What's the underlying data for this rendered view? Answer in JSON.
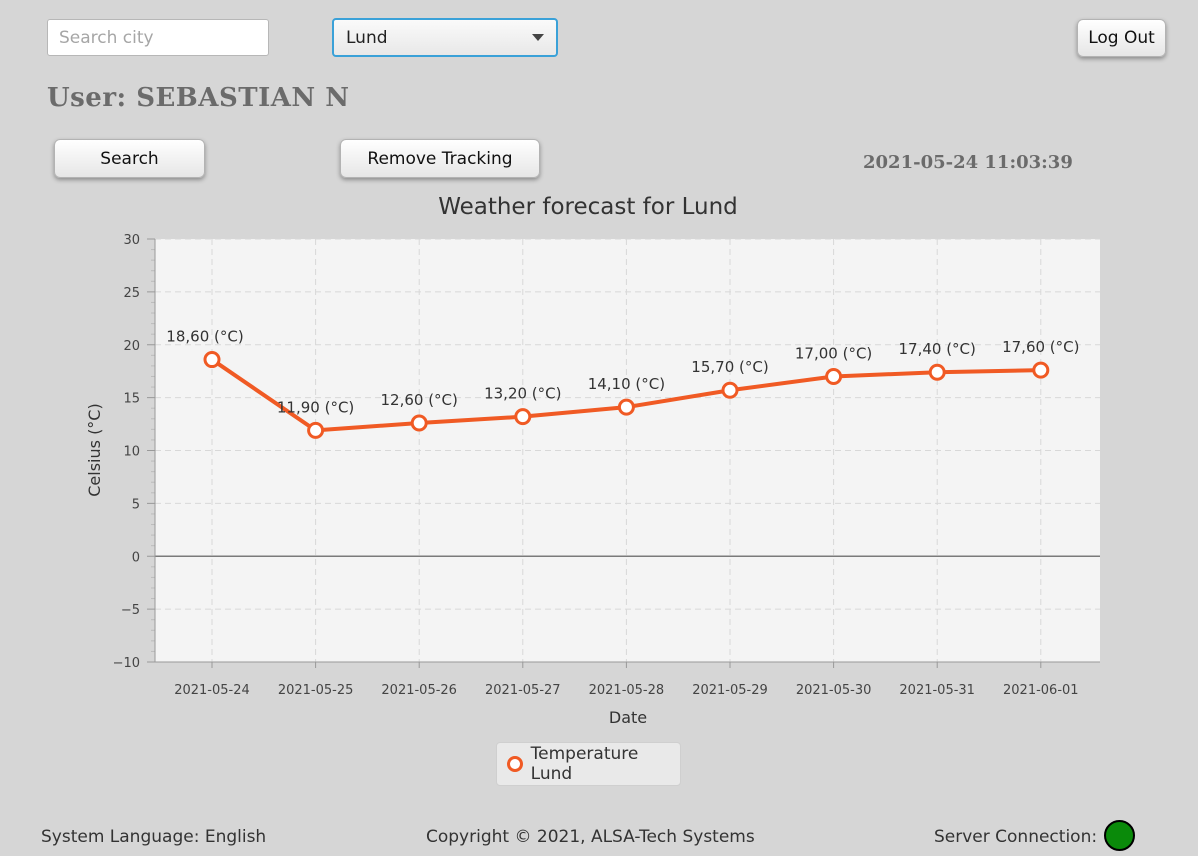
{
  "search": {
    "placeholder": "Search city"
  },
  "city_select": {
    "selected": "Lund"
  },
  "buttons": {
    "logout": "Log Out",
    "search": "Search",
    "remove_tracking": "Remove Tracking"
  },
  "user": {
    "label": "User: SEBASTIAN N"
  },
  "datetime": "2021-05-24 11:03:39",
  "chart_data": {
    "type": "line",
    "title": "Weather forecast for Lund",
    "xlabel": "Date",
    "ylabel": "Celsius (°C)",
    "ylim": [
      -10,
      30
    ],
    "yticks": [
      "30",
      "25",
      "20",
      "15",
      "10",
      "5",
      "0",
      "−5",
      "−10"
    ],
    "grid": true,
    "legend_position": "bottom",
    "color": "#f05a24",
    "categories": [
      "2021-05-24",
      "2021-05-25",
      "2021-05-26",
      "2021-05-27",
      "2021-05-28",
      "2021-05-29",
      "2021-05-30",
      "2021-05-31",
      "2021-06-01"
    ],
    "series": [
      {
        "name": "Temperature Lund",
        "values": [
          18.6,
          11.9,
          12.6,
          13.2,
          14.1,
          15.7,
          17.0,
          17.4,
          17.6
        ],
        "labels": [
          "18,60 (°C)",
          "11,90 (°C)",
          "12,60 (°C)",
          "13,20 (°C)",
          "14,10 (°C)",
          "15,70 (°C)",
          "17,00 (°C)",
          "17,40 (°C)",
          "17,60 (°C)"
        ]
      }
    ]
  },
  "footer": {
    "language": "System Language: English",
    "copyright": "Copyright © 2021, ALSA-Tech Systems",
    "server": "Server Connection:",
    "server_status_color": "#0a8a0a"
  }
}
